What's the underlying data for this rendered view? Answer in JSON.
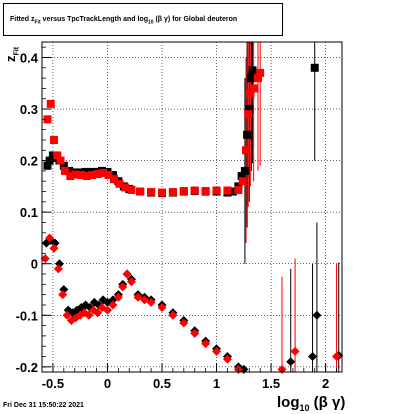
{
  "chart_data": {
    "type": "scatter",
    "title": {
      "pre": "Fitted  z",
      "sub": "Fit",
      "post": "  versus TpcTrackLength and log",
      "sub2": "10",
      "tail": " (β  γ) for Global deuteron"
    },
    "xlabel": {
      "pre": "log",
      "sub": "10",
      "post": " (β γ)"
    },
    "ylabel": {
      "pre": "z",
      "sub": "Fit"
    },
    "xlim": [
      -0.6,
      2.15
    ],
    "ylim": [
      -0.21,
      0.43
    ],
    "x_ticks": [
      -0.5,
      0,
      0.5,
      1,
      1.5,
      2
    ],
    "x_tick_labels": [
      "-0.5",
      "0",
      "0.5",
      "1",
      "1.5",
      "2"
    ],
    "y_ticks": [
      -0.2,
      -0.1,
      0,
      0.1,
      0.2,
      0.3,
      0.4
    ],
    "y_tick_labels": [
      "-0.2",
      "-0.1",
      "0",
      "0.1",
      "0.2",
      "0.3",
      "0.4"
    ],
    "grid": true,
    "series": [
      {
        "color": "#000000",
        "marker": "square",
        "points": [
          [
            -0.55,
            0.19
          ],
          [
            -0.53,
            0.2
          ],
          [
            -0.5,
            0.21
          ],
          [
            -0.47,
            0.205
          ],
          [
            -0.44,
            0.2
          ],
          [
            -0.4,
            0.19
          ],
          [
            -0.35,
            0.18
          ],
          [
            -0.3,
            0.177
          ],
          [
            -0.25,
            0.177
          ],
          [
            -0.2,
            0.178
          ],
          [
            -0.15,
            0.178
          ],
          [
            -0.1,
            0.178
          ],
          [
            -0.05,
            0.18
          ],
          [
            0,
            0.178
          ],
          [
            0.05,
            0.172
          ],
          [
            0.1,
            0.16
          ],
          [
            0.15,
            0.15
          ],
          [
            0.2,
            0.145
          ],
          [
            0.3,
            0.14
          ],
          [
            0.4,
            0.138
          ],
          [
            0.5,
            0.137
          ],
          [
            0.6,
            0.138
          ],
          [
            0.7,
            0.14
          ],
          [
            0.8,
            0.141
          ],
          [
            0.9,
            0.14
          ],
          [
            1.0,
            0.14
          ],
          [
            1.1,
            0.138
          ],
          [
            1.15,
            0.14
          ],
          [
            1.2,
            0.15
          ],
          [
            1.23,
            0.17
          ],
          [
            1.26,
            0.18
          ],
          [
            1.28,
            0.25
          ],
          [
            1.3,
            0.3
          ],
          [
            1.32,
            0.36
          ],
          [
            1.33,
            0.375
          ],
          [
            1.38,
            0.37
          ],
          [
            1.9,
            0.38
          ]
        ]
      },
      {
        "color": "#ff0000",
        "marker": "square",
        "points": [
          [
            -0.55,
            0.28
          ],
          [
            -0.52,
            0.31
          ],
          [
            -0.49,
            0.24
          ],
          [
            -0.46,
            0.21
          ],
          [
            -0.43,
            0.2
          ],
          [
            -0.39,
            0.18
          ],
          [
            -0.34,
            0.17
          ],
          [
            -0.29,
            0.173
          ],
          [
            -0.24,
            0.172
          ],
          [
            -0.19,
            0.17
          ],
          [
            -0.14,
            0.172
          ],
          [
            -0.09,
            0.174
          ],
          [
            -0.04,
            0.176
          ],
          [
            0.01,
            0.172
          ],
          [
            0.06,
            0.164
          ],
          [
            0.11,
            0.155
          ],
          [
            0.16,
            0.148
          ],
          [
            0.22,
            0.143
          ],
          [
            0.3,
            0.14
          ],
          [
            0.4,
            0.139
          ],
          [
            0.5,
            0.138
          ],
          [
            0.6,
            0.139
          ],
          [
            0.7,
            0.141
          ],
          [
            0.8,
            0.142
          ],
          [
            0.9,
            0.141
          ],
          [
            1.0,
            0.142
          ],
          [
            1.1,
            0.142
          ],
          [
            1.2,
            0.143
          ],
          [
            1.24,
            0.16
          ],
          [
            1.27,
            0.22
          ],
          [
            1.29,
            0.29
          ],
          [
            1.31,
            0.33
          ],
          [
            1.34,
            0.34
          ],
          [
            1.38,
            0.36
          ],
          [
            1.4,
            0.37
          ]
        ]
      },
      {
        "color": "#000000",
        "marker": "diamond",
        "points": [
          [
            -0.56,
            0.04
          ],
          [
            -0.52,
            0.045
          ],
          [
            -0.48,
            0.04
          ],
          [
            -0.44,
            0.0
          ],
          [
            -0.4,
            -0.05
          ],
          [
            -0.36,
            -0.09
          ],
          [
            -0.32,
            -0.095
          ],
          [
            -0.28,
            -0.09
          ],
          [
            -0.24,
            -0.085
          ],
          [
            -0.2,
            -0.08
          ],
          [
            -0.16,
            -0.085
          ],
          [
            -0.12,
            -0.075
          ],
          [
            -0.08,
            -0.08
          ],
          [
            -0.04,
            -0.07
          ],
          [
            0,
            -0.075
          ],
          [
            0.05,
            -0.07
          ],
          [
            0.1,
            -0.06
          ],
          [
            0.14,
            -0.04
          ],
          [
            0.18,
            -0.02
          ],
          [
            0.22,
            -0.03
          ],
          [
            0.28,
            -0.06
          ],
          [
            0.34,
            -0.065
          ],
          [
            0.4,
            -0.07
          ],
          [
            0.5,
            -0.08
          ],
          [
            0.6,
            -0.095
          ],
          [
            0.7,
            -0.11
          ],
          [
            0.8,
            -0.13
          ],
          [
            0.9,
            -0.15
          ],
          [
            1.0,
            -0.165
          ],
          [
            1.1,
            -0.18
          ],
          [
            1.2,
            -0.2
          ],
          [
            1.25,
            -0.205
          ],
          [
            1.68,
            -0.19
          ],
          [
            1.88,
            -0.18
          ],
          [
            1.92,
            -0.1
          ],
          [
            2.12,
            -0.178
          ]
        ]
      },
      {
        "color": "#ff0000",
        "marker": "diamond",
        "points": [
          [
            -0.57,
            0.01
          ],
          [
            -0.53,
            0.05
          ],
          [
            -0.49,
            0.03
          ],
          [
            -0.45,
            -0.01
          ],
          [
            -0.41,
            -0.06
          ],
          [
            -0.37,
            -0.1
          ],
          [
            -0.33,
            -0.11
          ],
          [
            -0.29,
            -0.105
          ],
          [
            -0.25,
            -0.1
          ],
          [
            -0.21,
            -0.095
          ],
          [
            -0.17,
            -0.1
          ],
          [
            -0.13,
            -0.09
          ],
          [
            -0.09,
            -0.095
          ],
          [
            -0.05,
            -0.085
          ],
          [
            0,
            -0.09
          ],
          [
            0.05,
            -0.08
          ],
          [
            0.1,
            -0.065
          ],
          [
            0.14,
            -0.045
          ],
          [
            0.18,
            -0.02
          ],
          [
            0.22,
            -0.035
          ],
          [
            0.28,
            -0.065
          ],
          [
            0.34,
            -0.07
          ],
          [
            0.4,
            -0.075
          ],
          [
            0.5,
            -0.085
          ],
          [
            0.6,
            -0.1
          ],
          [
            0.7,
            -0.115
          ],
          [
            0.8,
            -0.135
          ],
          [
            0.9,
            -0.155
          ],
          [
            1.0,
            -0.17
          ],
          [
            1.1,
            -0.185
          ],
          [
            1.2,
            -0.205
          ],
          [
            1.6,
            -0.205
          ],
          [
            1.72,
            -0.17
          ],
          [
            2.1,
            -0.18
          ]
        ]
      }
    ]
  },
  "footer_timestamp": "Fri Dec 31 15:50:22 2021"
}
